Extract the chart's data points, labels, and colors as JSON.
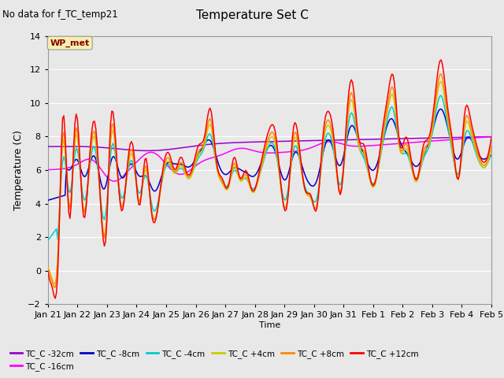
{
  "title": "Temperature Set C",
  "subtitle": "No data for f_TC_temp21",
  "xlabel": "Time",
  "ylabel": "Temperature (C)",
  "ylim": [
    -2,
    14
  ],
  "yticks": [
    -2,
    0,
    2,
    4,
    6,
    8,
    10,
    12,
    14
  ],
  "plot_bg_color": "#e8e8e8",
  "fig_bg_color": "#e8e8e8",
  "wp_met_label": "WP_met",
  "legend_entries": [
    "TC_C -32cm",
    "TC_C -16cm",
    "TC_C -8cm",
    "TC_C -4cm",
    "TC_C +4cm",
    "TC_C +8cm",
    "TC_C +12cm"
  ],
  "line_colors": {
    "TC_C -32cm": "#9900cc",
    "TC_C -16cm": "#ff00ff",
    "TC_C -8cm": "#0000cc",
    "TC_C -4cm": "#00cccc",
    "TC_C +4cm": "#cccc00",
    "TC_C +8cm": "#ff8800",
    "TC_C +12cm": "#ff0000"
  },
  "xtick_labels": [
    "Jan 21",
    "Jan 22",
    "Jan 23",
    "Jan 24",
    "Jan 25",
    "Jan 26",
    "Jan 27",
    "Jan 28",
    "Jan 29",
    "Jan 30",
    "Jan 31",
    "Feb 1",
    "Feb 2",
    "Feb 3",
    "Feb 4",
    "Feb 5"
  ]
}
